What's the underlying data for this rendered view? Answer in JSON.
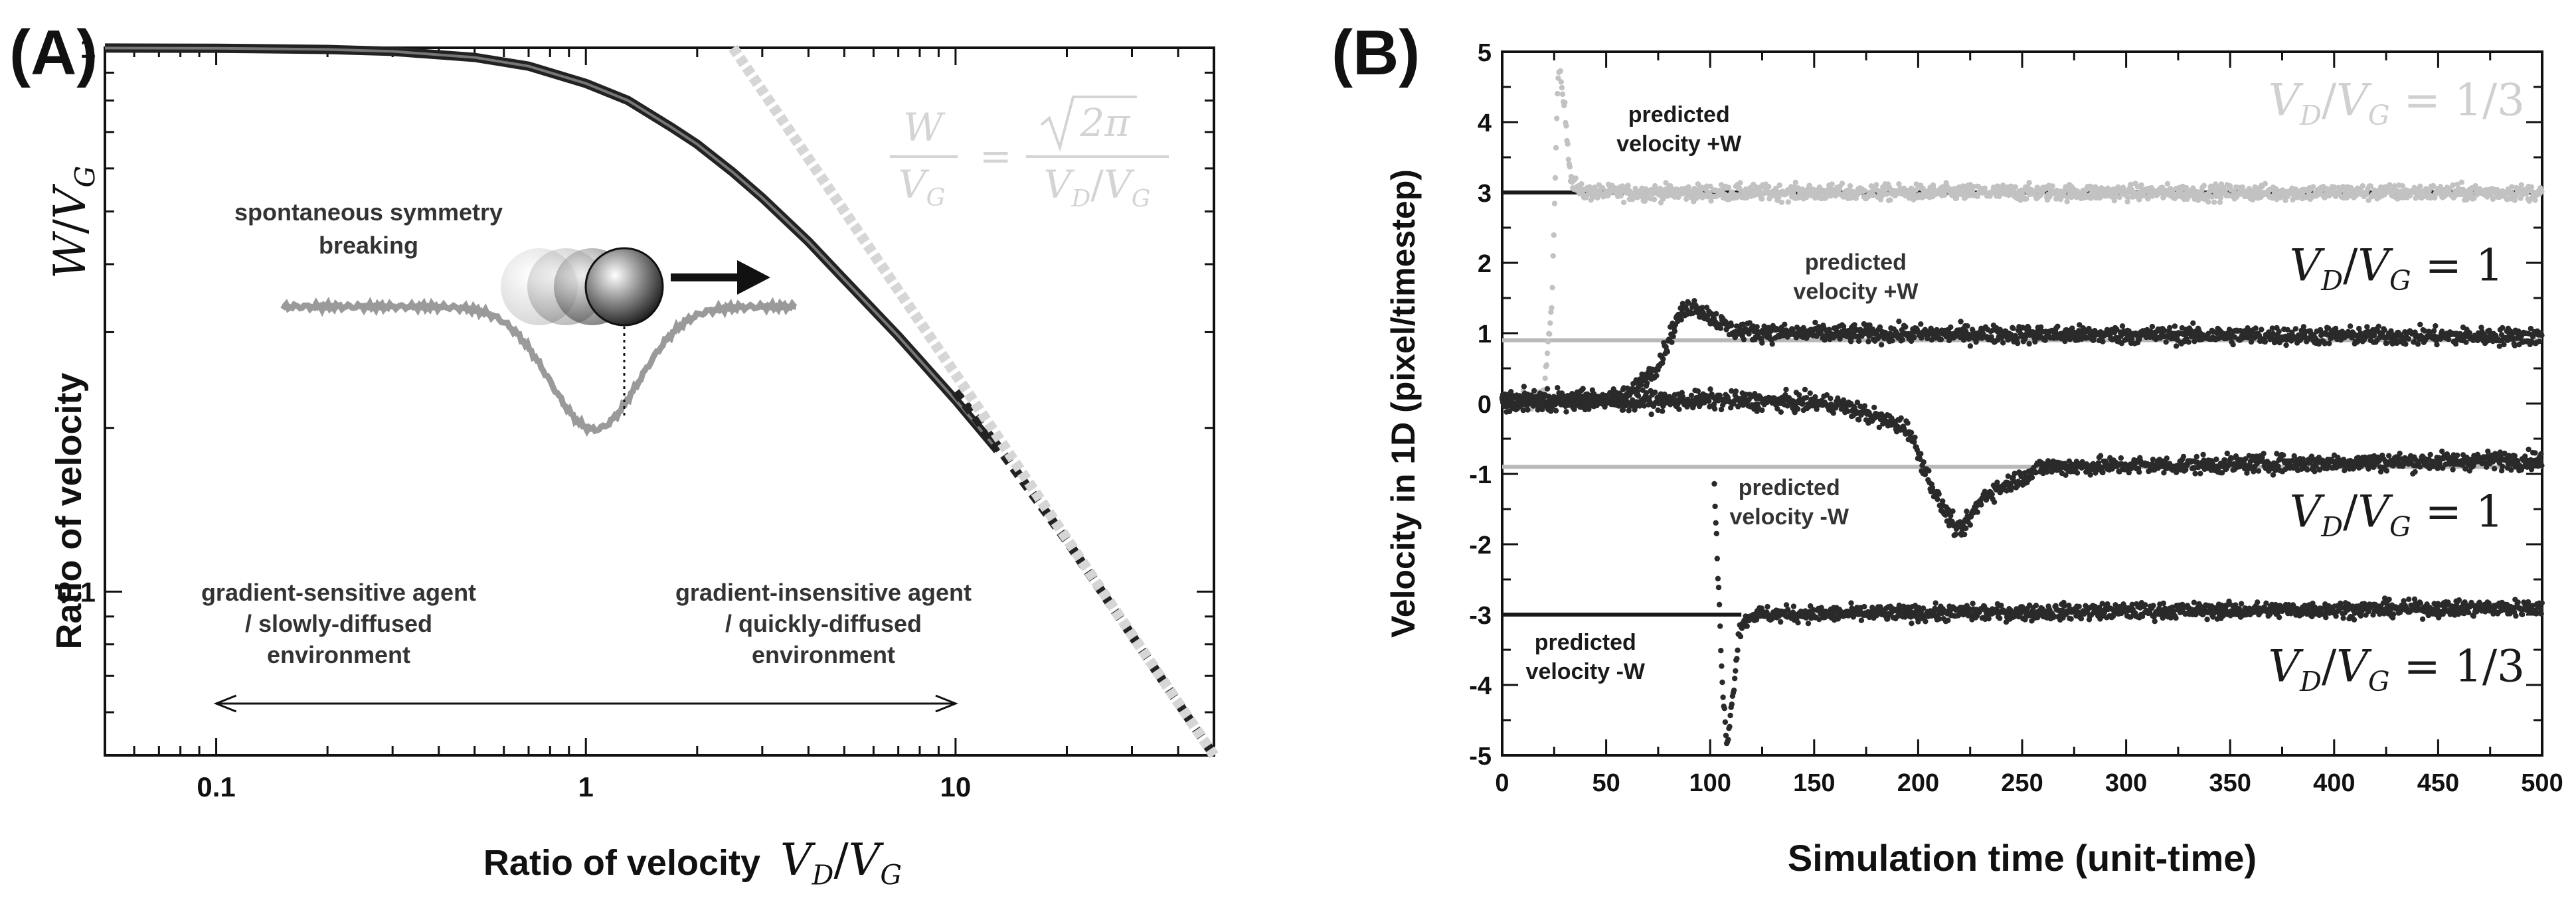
{
  "chart_data": [
    {
      "panel_label": "(A)",
      "type": "line",
      "xscale": "log",
      "yscale": "log",
      "xlim": [
        0.05,
        50
      ],
      "ylim": [
        0.05,
        1
      ],
      "x_ticks": [
        0.1,
        1,
        10
      ],
      "x_tick_labels": [
        "0.1",
        "1",
        "10"
      ],
      "y_ticks": [
        0.1,
        1
      ],
      "y_tick_labels": [
        "0.1",
        "1"
      ],
      "xlabel_text": "Ratio of velocity",
      "xlabel_math": {
        "a": "V",
        "a_sub": "D",
        "b": "V",
        "b_sub": "G"
      },
      "ylabel_text": "Ratio of velocity",
      "ylabel_math": {
        "a": "W",
        "b": "V",
        "b_sub": "G"
      },
      "series": [
        {
          "style": "solid",
          "color": "#222222",
          "x": [
            0.05,
            0.1,
            0.2,
            0.3,
            0.5,
            0.7,
            1.0,
            1.3,
            1.7,
            2.0,
            2.5,
            3.0,
            4.0,
            5.0,
            7.0,
            10.0,
            13.0
          ],
          "y": [
            0.999,
            0.998,
            0.993,
            0.985,
            0.96,
            0.925,
            0.86,
            0.8,
            0.715,
            0.665,
            0.59,
            0.53,
            0.44,
            0.375,
            0.295,
            0.225,
            0.182
          ]
        },
        {
          "style": "dashed",
          "color": "#222222",
          "x": [
            10,
            13,
            20,
            30,
            50
          ],
          "y": [
            0.233,
            0.185,
            0.124,
            0.083,
            0.05
          ]
        },
        {
          "style": "dotted-thick",
          "color": "#d6d6d6",
          "x": [
            2.5,
            5,
            10,
            20,
            50
          ],
          "y": [
            1.0,
            0.501,
            0.251,
            0.125,
            0.05
          ]
        }
      ],
      "formula": {
        "lhs_num": "W",
        "lhs_den": "V",
        "lhs_den_sub": "G",
        "rhs_num": "2π",
        "rhs_den_a": "V",
        "rhs_den_a_sub": "D",
        "rhs_den_b": "V",
        "rhs_den_b_sub": "G",
        "color": "#d4d4d4"
      },
      "inset": {
        "title_line1": "spontaneous symmetry",
        "title_line2": "breaking"
      },
      "annotations": {
        "left_line1": "gradient-sensitive agent",
        "left_line2": "/ slowly-diffused",
        "left_line3": "environment",
        "right_line1": "gradient-insensitive agent",
        "right_line2": "/ quickly-diffused",
        "right_line3": "environment",
        "arrow_from": 0.1,
        "arrow_to": 10
      }
    },
    {
      "panel_label": "(B)",
      "type": "scatter",
      "xlim": [
        0,
        500
      ],
      "ylim": [
        -5,
        5
      ],
      "x_ticks": [
        0,
        50,
        100,
        150,
        200,
        250,
        300,
        350,
        400,
        450,
        500
      ],
      "x_tick_labels": [
        "0",
        "50",
        "100",
        "150",
        "200",
        "250",
        "300",
        "350",
        "400",
        "450",
        "500"
      ],
      "y_ticks": [
        -5,
        -4,
        -3,
        -2,
        -1,
        0,
        1,
        2,
        3,
        4,
        5
      ],
      "y_tick_labels": [
        "-5",
        "-4",
        "-3",
        "-2",
        "-1",
        "0",
        "1",
        "2",
        "3",
        "4",
        "5"
      ],
      "xlabel": "Simulation time (unit-time)",
      "ylabel": "Velocity in 1D (pixel/timestep)",
      "predicted_lines": [
        {
          "y": 3.0,
          "x_from": 0,
          "x_to": 500,
          "color": "#1a1a1a"
        },
        {
          "y": 0.9,
          "x_from": 0,
          "x_to": 500,
          "color": "#b8b8b8"
        },
        {
          "y": -0.9,
          "x_from": 0,
          "x_to": 500,
          "color": "#b8b8b8"
        },
        {
          "y": -3.0,
          "x_from": 0,
          "x_to": 115,
          "color": "#1a1a1a"
        }
      ],
      "series": [
        {
          "color": "#c2c2c2",
          "noise": 0.08,
          "knots": [
            [
              0,
              0
            ],
            [
              20,
              0.1
            ],
            [
              24,
              1.5
            ],
            [
              27,
              4.8
            ],
            [
              30,
              4.2
            ],
            [
              33,
              3.2
            ],
            [
              38,
              3.0
            ],
            [
              500,
              3.0
            ]
          ]
        },
        {
          "color": "#2a2a2a",
          "noise": 0.09,
          "knots": [
            [
              0,
              0.05
            ],
            [
              60,
              0.1
            ],
            [
              75,
              0.55
            ],
            [
              85,
              1.25
            ],
            [
              92,
              1.4
            ],
            [
              110,
              1.05
            ],
            [
              130,
              1.0
            ],
            [
              500,
              0.95
            ]
          ]
        },
        {
          "color": "#2a2a2a",
          "noise": 0.09,
          "knots": [
            [
              0,
              0.0
            ],
            [
              100,
              0.05
            ],
            [
              160,
              0.0
            ],
            [
              195,
              -0.35
            ],
            [
              210,
              -1.4
            ],
            [
              220,
              -1.85
            ],
            [
              232,
              -1.3
            ],
            [
              260,
              -0.9
            ],
            [
              500,
              -0.8
            ]
          ]
        },
        {
          "color": "#2a2a2a",
          "noise": 0.08,
          "knots": [
            [
              102,
              -1.2
            ],
            [
              104,
              -2.6
            ],
            [
              106,
              -4.1
            ],
            [
              108,
              -4.8
            ],
            [
              110,
              -4.4
            ],
            [
              114,
              -3.2
            ],
            [
              120,
              -3.0
            ],
            [
              500,
              -2.9
            ]
          ]
        }
      ],
      "series_labels": [
        {
          "a": "V",
          "a_sub": "D",
          "b": "V",
          "b_sub": "G",
          "value": "1/3",
          "color": "#d0d0d0",
          "at": [
            430,
            4.1
          ]
        },
        {
          "a": "V",
          "a_sub": "D",
          "b": "V",
          "b_sub": "G",
          "value": "1",
          "color": "#1a1a1a",
          "at": [
            430,
            1.75
          ]
        },
        {
          "a": "V",
          "a_sub": "D",
          "b": "V",
          "b_sub": "G",
          "value": "1",
          "color": "#1a1a1a",
          "at": [
            430,
            -1.75
          ]
        },
        {
          "a": "V",
          "a_sub": "D",
          "b": "V",
          "b_sub": "G",
          "value": "1/3",
          "color": "#1a1a1a",
          "at": [
            430,
            -3.95
          ]
        }
      ],
      "annotations": [
        {
          "line1": "predicted",
          "line2": "velocity +W",
          "color": "#1a1a1a",
          "at": [
            85,
            4.0
          ]
        },
        {
          "line1": "predicted",
          "line2": "velocity +W",
          "color": "#333333",
          "at": [
            170,
            1.9
          ]
        },
        {
          "line1": "predicted",
          "line2": "velocity -W",
          "color": "#333333",
          "at": [
            138,
            -1.3
          ]
        },
        {
          "line1": "predicted",
          "line2": "velocity -W",
          "color": "#1a1a1a",
          "at": [
            40,
            -3.5
          ]
        }
      ]
    }
  ]
}
